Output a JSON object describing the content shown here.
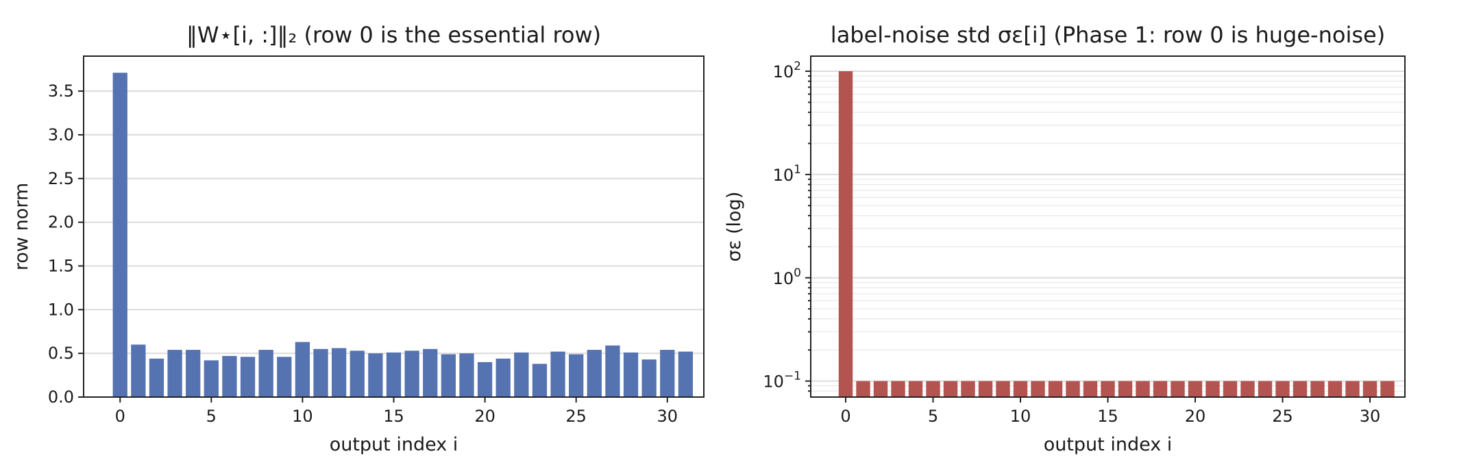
{
  "chart_data": [
    {
      "type": "bar",
      "title": "‖W⋆[i, :]‖₂  (row 0 is the essential row)",
      "xlabel": "output index i",
      "ylabel": "row norm",
      "x": [
        0,
        1,
        2,
        3,
        4,
        5,
        6,
        7,
        8,
        9,
        10,
        11,
        12,
        13,
        14,
        15,
        16,
        17,
        18,
        19,
        20,
        21,
        22,
        23,
        24,
        25,
        26,
        27,
        28,
        29,
        30,
        31
      ],
      "values": [
        3.71,
        0.6,
        0.44,
        0.54,
        0.54,
        0.42,
        0.47,
        0.46,
        0.54,
        0.46,
        0.63,
        0.55,
        0.56,
        0.53,
        0.5,
        0.51,
        0.53,
        0.55,
        0.49,
        0.5,
        0.4,
        0.44,
        0.51,
        0.38,
        0.52,
        0.49,
        0.54,
        0.59,
        0.51,
        0.43,
        0.54,
        0.52
      ],
      "xticks": [
        0,
        5,
        10,
        15,
        20,
        25,
        30
      ],
      "yticks": [
        "0.0",
        "0.5",
        "1.0",
        "1.5",
        "2.0",
        "2.5",
        "3.0",
        "3.5"
      ],
      "xlim": [
        -2,
        32
      ],
      "ylim": [
        0,
        3.9
      ],
      "scale": "linear",
      "grid": "y-major",
      "color": "#5573b0"
    },
    {
      "type": "bar",
      "title": "label-noise std σε[i]  (Phase 1: row 0 is huge-noise)",
      "xlabel": "output index i",
      "ylabel": "σε (log)",
      "x": [
        0,
        1,
        2,
        3,
        4,
        5,
        6,
        7,
        8,
        9,
        10,
        11,
        12,
        13,
        14,
        15,
        16,
        17,
        18,
        19,
        20,
        21,
        22,
        23,
        24,
        25,
        26,
        27,
        28,
        29,
        30,
        31
      ],
      "values": [
        100,
        0.1,
        0.1,
        0.1,
        0.1,
        0.1,
        0.1,
        0.1,
        0.1,
        0.1,
        0.1,
        0.1,
        0.1,
        0.1,
        0.1,
        0.1,
        0.1,
        0.1,
        0.1,
        0.1,
        0.1,
        0.1,
        0.1,
        0.1,
        0.1,
        0.1,
        0.1,
        0.1,
        0.1,
        0.1,
        0.1,
        0.1
      ],
      "xticks": [
        0,
        5,
        10,
        15,
        20,
        25,
        30
      ],
      "yticks": [
        {
          "base": "10",
          "exp": "2"
        },
        {
          "base": "10",
          "exp": "1"
        },
        {
          "base": "10",
          "exp": "0"
        },
        {
          "base": "10",
          "exp": "−1"
        }
      ],
      "xlim": [
        -2,
        32
      ],
      "ylim": [
        0.07,
        140
      ],
      "scale": "log",
      "grid": "y-major-and-minor",
      "color": "#b45450"
    }
  ]
}
